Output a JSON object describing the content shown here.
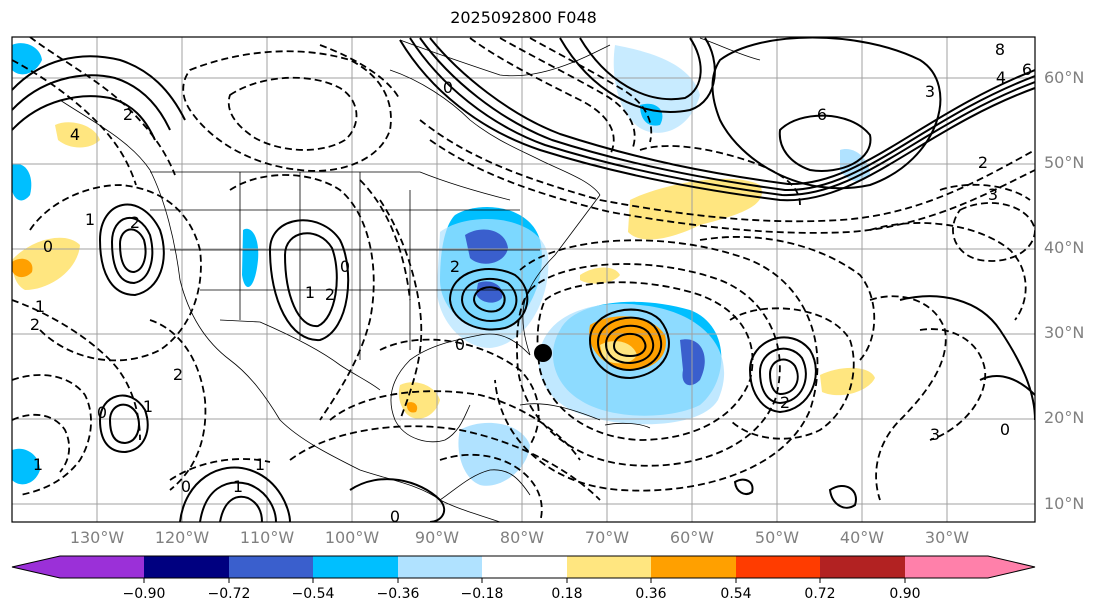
{
  "title": "2025092800 F048",
  "colors": {
    "frame": "#000000",
    "grid": "#a0a0a0",
    "coast": "#000000",
    "contour": "#000000",
    "axis_label": "#808080",
    "bins": [
      "#9b30d8",
      "#000080",
      "#3a5fcd",
      "#00bfff",
      "#b0e2ff",
      "#ffffff",
      "#ffe680",
      "#ffa000",
      "#ff3c00",
      "#b22222",
      "#ff80aa"
    ]
  },
  "lat_labels": [
    "60°N",
    "50°N",
    "40°N",
    "30°N",
    "20°N",
    "10°N"
  ],
  "lon_labels": [
    "130°W",
    "120°W",
    "110°W",
    "100°W",
    "90°W",
    "80°W",
    "70°W",
    "60°W",
    "50°W",
    "40°W",
    "30°W"
  ],
  "colorbar": {
    "ticks": [
      "−0.90",
      "−0.72",
      "−0.54",
      "−0.36",
      "−0.18",
      "0.18",
      "0.36",
      "0.54",
      "0.72",
      "0.90"
    ]
  },
  "contour_labels": [
    "8",
    "6",
    "4",
    "6",
    "4",
    "2",
    "0",
    "2",
    "3",
    "3",
    "0",
    "1",
    "2",
    "0",
    "2",
    "1",
    "2",
    "0",
    "1",
    "2",
    "0",
    "2",
    "1",
    "1",
    "0",
    "0",
    "1",
    "2",
    "3",
    "0",
    "1"
  ],
  "storm_marker": "storm-center"
}
